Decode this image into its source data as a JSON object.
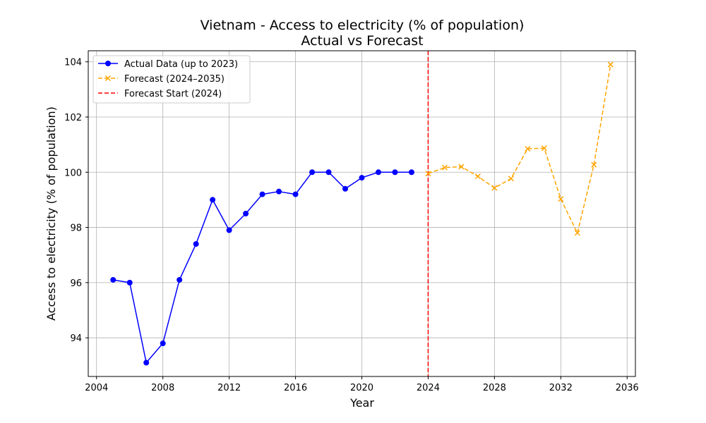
{
  "chart_data": {
    "type": "line",
    "title": "Vietnam - Access to electricity (% of population)",
    "subtitle": "Actual vs Forecast",
    "xlabel": "Year",
    "ylabel": "Access to electricity (% of population)",
    "xlim": [
      2003.5,
      2036.5
    ],
    "ylim": [
      92.6,
      104.4
    ],
    "xticks": [
      2004,
      2008,
      2012,
      2016,
      2020,
      2024,
      2028,
      2032,
      2036
    ],
    "yticks": [
      94,
      96,
      98,
      100,
      102,
      104
    ],
    "grid": true,
    "legend_position": "top-left",
    "series": [
      {
        "name": "Actual Data (up to 2023)",
        "color": "#0000ff",
        "line_style": "solid",
        "marker": "circle",
        "x": [
          2005,
          2006,
          2007,
          2008,
          2009,
          2010,
          2011,
          2012,
          2013,
          2014,
          2015,
          2016,
          2017,
          2018,
          2019,
          2020,
          2021,
          2022,
          2023
        ],
        "y": [
          96.1,
          96.0,
          93.1,
          93.8,
          96.1,
          97.4,
          99.0,
          97.9,
          98.5,
          99.2,
          99.3,
          99.2,
          100.0,
          100.0,
          99.4,
          99.8,
          100.0,
          100.0,
          100.0
        ]
      },
      {
        "name": "Forecast (2024–2035)",
        "color": "#ffa500",
        "line_style": "dashed",
        "marker": "x",
        "x": [
          2024,
          2025,
          2026,
          2027,
          2028,
          2029,
          2030,
          2031,
          2032,
          2033,
          2034,
          2035
        ],
        "y": [
          99.95,
          100.17,
          100.2,
          99.85,
          99.43,
          99.77,
          100.85,
          100.87,
          99.03,
          97.8,
          100.27,
          103.9
        ]
      }
    ],
    "annotations": [
      {
        "type": "vline",
        "x": 2024,
        "color": "#ff0000",
        "line_style": "dashed",
        "label": "Forecast Start (2024)"
      }
    ]
  }
}
